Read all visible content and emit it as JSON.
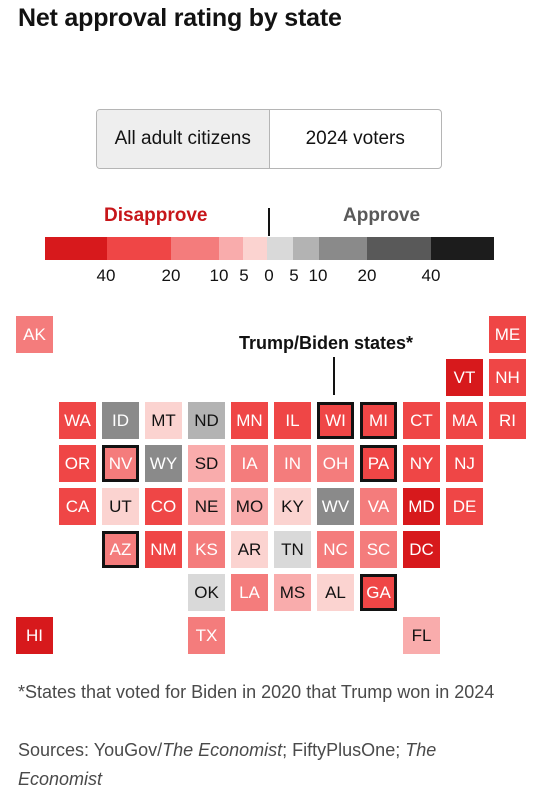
{
  "title": "Net approval rating by state",
  "toggle": {
    "options": [
      "All adult citizens",
      "2024 voters"
    ],
    "selected": "All adult citizens"
  },
  "legend": {
    "disapprove_label": "Disapprove",
    "approve_label": "Approve",
    "ticks": [
      "40",
      "20",
      "10",
      "5",
      "0",
      "5",
      "10",
      "20",
      "40"
    ],
    "bins": [
      {
        "range": "< -40",
        "color": "#d7191c"
      },
      {
        "range": "-40 to -20",
        "color": "#ef4646"
      },
      {
        "range": "-20 to -10",
        "color": "#f47c7c"
      },
      {
        "range": "-10 to -5",
        "color": "#f9acac"
      },
      {
        "range": "-5 to 0",
        "color": "#fbd3d0"
      },
      {
        "range": "0 to 5",
        "color": "#d9d9d9"
      },
      {
        "range": "5 to 10",
        "color": "#b3b3b3"
      },
      {
        "range": "10 to 20",
        "color": "#8a8a8a"
      },
      {
        "range": "20 to 40",
        "color": "#595959"
      },
      {
        "range": "> 40",
        "color": "#1c1c1c"
      }
    ]
  },
  "annotation": "Trump/Biden states*",
  "chart_data": {
    "type": "heatmap",
    "title": "Net approval rating by state",
    "note": "tile map of US states, each colored by net approval bin",
    "states": [
      {
        "state": "AK",
        "col": 0,
        "row": 0,
        "color": "#f47c7c",
        "swing": false
      },
      {
        "state": "ME",
        "col": 11,
        "row": 0,
        "color": "#ef4646",
        "swing": false
      },
      {
        "state": "VT",
        "col": 10,
        "row": 1,
        "color": "#d7191c",
        "swing": false
      },
      {
        "state": "NH",
        "col": 11,
        "row": 1,
        "color": "#ef4646",
        "swing": false
      },
      {
        "state": "WA",
        "col": 1,
        "row": 2,
        "color": "#ef4646",
        "swing": false
      },
      {
        "state": "ID",
        "col": 2,
        "row": 2,
        "color": "#8a8a8a",
        "swing": false
      },
      {
        "state": "MT",
        "col": 3,
        "row": 2,
        "color": "#fbd3d0",
        "swing": false
      },
      {
        "state": "ND",
        "col": 4,
        "row": 2,
        "color": "#b3b3b3",
        "swing": false
      },
      {
        "state": "MN",
        "col": 5,
        "row": 2,
        "color": "#ef4646",
        "swing": false
      },
      {
        "state": "IL",
        "col": 6,
        "row": 2,
        "color": "#ef4646",
        "swing": false
      },
      {
        "state": "WI",
        "col": 7,
        "row": 2,
        "color": "#ef4646",
        "swing": true
      },
      {
        "state": "MI",
        "col": 8,
        "row": 2,
        "color": "#ef4646",
        "swing": true
      },
      {
        "state": "CT",
        "col": 9,
        "row": 2,
        "color": "#ef4646",
        "swing": false
      },
      {
        "state": "MA",
        "col": 10,
        "row": 2,
        "color": "#ef4646",
        "swing": false
      },
      {
        "state": "RI",
        "col": 11,
        "row": 2,
        "color": "#ef4646",
        "swing": false
      },
      {
        "state": "OR",
        "col": 1,
        "row": 3,
        "color": "#ef4646",
        "swing": false
      },
      {
        "state": "NV",
        "col": 2,
        "row": 3,
        "color": "#f47c7c",
        "swing": true
      },
      {
        "state": "WY",
        "col": 3,
        "row": 3,
        "color": "#8a8a8a",
        "swing": false
      },
      {
        "state": "SD",
        "col": 4,
        "row": 3,
        "color": "#f9acac",
        "swing": false
      },
      {
        "state": "IA",
        "col": 5,
        "row": 3,
        "color": "#f47c7c",
        "swing": false
      },
      {
        "state": "IN",
        "col": 6,
        "row": 3,
        "color": "#f47c7c",
        "swing": false
      },
      {
        "state": "OH",
        "col": 7,
        "row": 3,
        "color": "#f47c7c",
        "swing": false
      },
      {
        "state": "PA",
        "col": 8,
        "row": 3,
        "color": "#ef4646",
        "swing": true
      },
      {
        "state": "NY",
        "col": 9,
        "row": 3,
        "color": "#ef4646",
        "swing": false
      },
      {
        "state": "NJ",
        "col": 10,
        "row": 3,
        "color": "#ef4646",
        "swing": false
      },
      {
        "state": "CA",
        "col": 1,
        "row": 4,
        "color": "#ef4646",
        "swing": false
      },
      {
        "state": "UT",
        "col": 2,
        "row": 4,
        "color": "#fbd3d0",
        "swing": false
      },
      {
        "state": "CO",
        "col": 3,
        "row": 4,
        "color": "#ef4646",
        "swing": false
      },
      {
        "state": "NE",
        "col": 4,
        "row": 4,
        "color": "#f9acac",
        "swing": false
      },
      {
        "state": "MO",
        "col": 5,
        "row": 4,
        "color": "#f9acac",
        "swing": false
      },
      {
        "state": "KY",
        "col": 6,
        "row": 4,
        "color": "#fbd3d0",
        "swing": false
      },
      {
        "state": "WV",
        "col": 7,
        "row": 4,
        "color": "#8a8a8a",
        "swing": false
      },
      {
        "state": "VA",
        "col": 8,
        "row": 4,
        "color": "#f47c7c",
        "swing": false
      },
      {
        "state": "MD",
        "col": 9,
        "row": 4,
        "color": "#d7191c",
        "swing": false
      },
      {
        "state": "DE",
        "col": 10,
        "row": 4,
        "color": "#ef4646",
        "swing": false
      },
      {
        "state": "AZ",
        "col": 2,
        "row": 5,
        "color": "#f47c7c",
        "swing": true
      },
      {
        "state": "NM",
        "col": 3,
        "row": 5,
        "color": "#ef4646",
        "swing": false
      },
      {
        "state": "KS",
        "col": 4,
        "row": 5,
        "color": "#f47c7c",
        "swing": false
      },
      {
        "state": "AR",
        "col": 5,
        "row": 5,
        "color": "#fbd3d0",
        "swing": false
      },
      {
        "state": "TN",
        "col": 6,
        "row": 5,
        "color": "#d9d9d9",
        "swing": false
      },
      {
        "state": "NC",
        "col": 7,
        "row": 5,
        "color": "#f47c7c",
        "swing": false
      },
      {
        "state": "SC",
        "col": 8,
        "row": 5,
        "color": "#f47c7c",
        "swing": false
      },
      {
        "state": "DC",
        "col": 9,
        "row": 5,
        "color": "#d7191c",
        "swing": false
      },
      {
        "state": "OK",
        "col": 4,
        "row": 6,
        "color": "#d9d9d9",
        "swing": false
      },
      {
        "state": "LA",
        "col": 5,
        "row": 6,
        "color": "#f47c7c",
        "swing": false
      },
      {
        "state": "MS",
        "col": 6,
        "row": 6,
        "color": "#f9acac",
        "swing": false
      },
      {
        "state": "AL",
        "col": 7,
        "row": 6,
        "color": "#fbd3d0",
        "swing": false
      },
      {
        "state": "GA",
        "col": 8,
        "row": 6,
        "color": "#ef4646",
        "swing": true
      },
      {
        "state": "HI",
        "col": 0,
        "row": 7,
        "color": "#d7191c",
        "swing": false
      },
      {
        "state": "TX",
        "col": 4,
        "row": 7,
        "color": "#f47c7c",
        "swing": false
      },
      {
        "state": "FL",
        "col": 9,
        "row": 7,
        "color": "#f9acac",
        "swing": false
      }
    ]
  },
  "footnote": "*States that voted for Biden in 2020 that Trump won in 2024",
  "sources": {
    "prefix": "Sources: YouGov/",
    "italic1": "The Economist",
    "middle": "; FiftyPlusOne; ",
    "italic2": "The Economist"
  }
}
